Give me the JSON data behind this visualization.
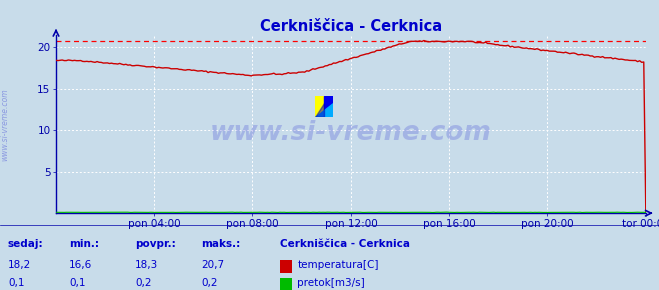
{
  "title": "Cerkniščica - Cerknica",
  "bg_color": "#c8dcea",
  "plot_bg_color": "#c8dcea",
  "grid_color": "#ffffff",
  "axis_color": "#0000aa",
  "tick_color": "#0000aa",
  "title_color": "#0000cc",
  "watermark": "www.si-vreme.com",
  "watermark_color": "#0000cc",
  "watermark_alpha": 0.18,
  "x_ticks_labels": [
    "pon 04:00",
    "pon 08:00",
    "pon 12:00",
    "pon 16:00",
    "pon 20:00",
    "tor 00:00"
  ],
  "x_ticks_pos": [
    0.1667,
    0.333,
    0.5,
    0.6667,
    0.8333,
    1.0
  ],
  "ylim": [
    0,
    21.5
  ],
  "yticks": [
    5,
    10,
    15,
    20
  ],
  "max_line_y": 20.7,
  "max_line_color": "#ff0000",
  "temp_color": "#cc0000",
  "flow_color": "#00bb00",
  "legend_title": "Cerkniščica - Cerknica",
  "legend_title_color": "#0000cc",
  "legend_color": "#0000cc",
  "label_temp": "temperatura[C]",
  "label_flow": "pretok[m3/s]",
  "swatch_temp": "#cc0000",
  "swatch_flow": "#00bb00",
  "footer_labels": [
    "sedaj:",
    "min.:",
    "povpr.:",
    "maks.:"
  ],
  "footer_temp": [
    "18,2",
    "16,6",
    "18,3",
    "20,7"
  ],
  "footer_flow": [
    "0,1",
    "0,1",
    "0,2",
    "0,2"
  ],
  "footer_color": "#0000cc",
  "ylabel_text": "www.si-vreme.com",
  "n_points": 288,
  "flow_value": 0.1,
  "logo_colors": [
    "#ffff00",
    "#0000ff",
    "#00aaff"
  ]
}
